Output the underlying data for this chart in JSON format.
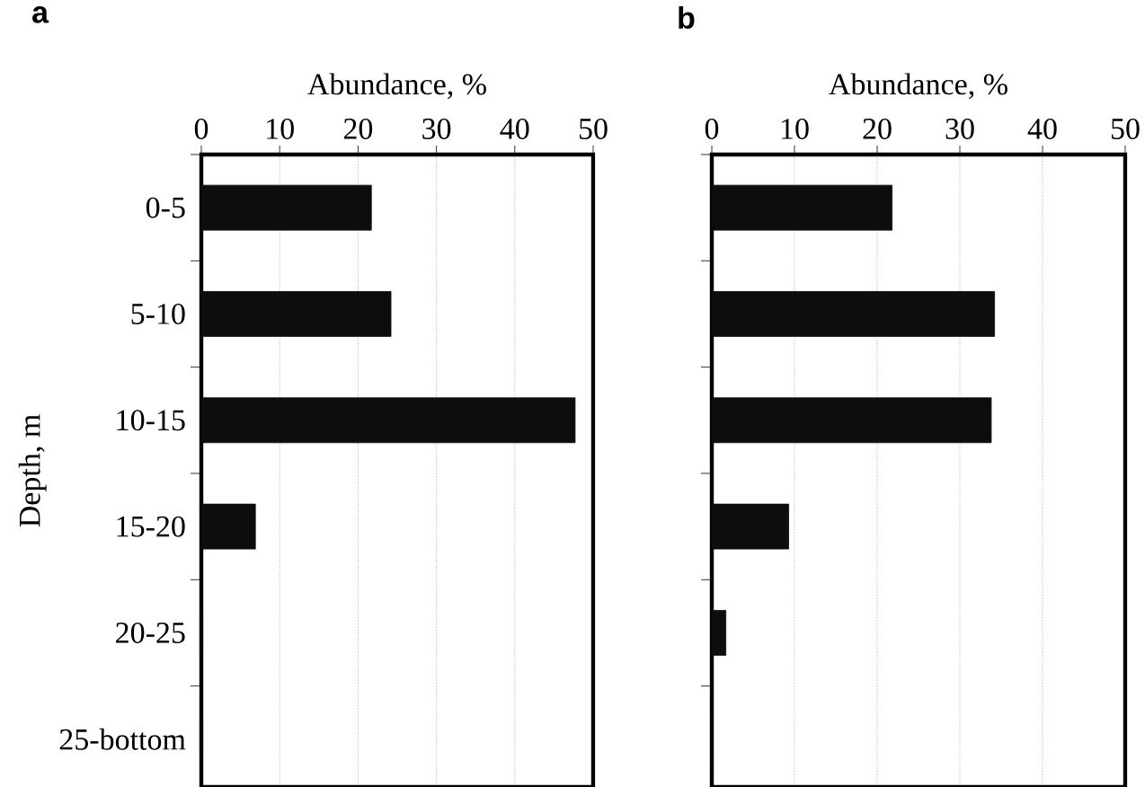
{
  "chart_data": [
    {
      "type": "bar",
      "orientation": "horizontal",
      "title": "a",
      "xlabel": "Abundance, %",
      "ylabel": "Depth, m",
      "categories": [
        "0-5",
        "5-10",
        "10-15",
        "15-20",
        "20-25",
        "25-bottom"
      ],
      "values": [
        21.7,
        24.2,
        47.7,
        6.9,
        0,
        0
      ],
      "color": "#0d0d0d",
      "xlim": [
        0,
        50
      ],
      "xticks": [
        0,
        10,
        20,
        30,
        40,
        50
      ],
      "grid": "x"
    },
    {
      "type": "bar",
      "orientation": "horizontal",
      "title": "b",
      "xlabel": "Abundance, %",
      "categories": [
        null,
        null,
        null,
        null,
        null,
        null
      ],
      "values": [
        21.8,
        34.2,
        33.8,
        9.3,
        1.7,
        0
      ],
      "color": "#0d0d0d",
      "xlim": [
        0,
        50
      ],
      "xticks": [
        0,
        10,
        20,
        30,
        40,
        50
      ],
      "grid": "x",
      "tick_labels": "x"
    }
  ]
}
